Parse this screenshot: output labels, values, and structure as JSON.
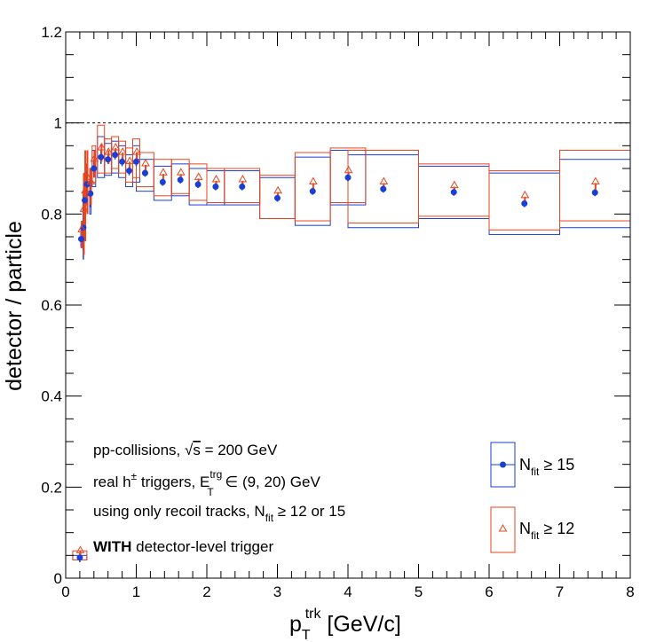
{
  "chart_data": {
    "type": "scatter",
    "xlabel": {
      "main": "p",
      "sub": "T",
      "sup": "trk",
      "unit": " [GeV/c]"
    },
    "ylabel": "detector / particle",
    "xlim": [
      0,
      8
    ],
    "ylim": [
      0,
      1.2
    ],
    "x_ticks": [
      "0",
      "1",
      "2",
      "3",
      "4",
      "5",
      "6",
      "7",
      "8"
    ],
    "y_ticks": [
      "0",
      "0.2",
      "0.4",
      "0.6",
      "0.8",
      "1",
      "1.2"
    ],
    "reference_line": {
      "y": 1.0,
      "style": "dashed"
    },
    "colors": {
      "nfit15": "#1a3fd6",
      "nfit12": "#e8461e"
    },
    "annotations": {
      "line1": {
        "pre": "pp-collisions, ",
        "sqrt": "s",
        "post": " = 200 GeV"
      },
      "line2": {
        "pre": "real h",
        "pm": "±",
        "mid": " triggers, E",
        "sup": "trg",
        "sub": "T",
        "post": " ∈ (9, 20) GeV"
      },
      "line3": {
        "pre": "using only recoil tracks, N",
        "sub": "fit",
        "post": " ≥ 12 or 15"
      },
      "line4": {
        "bold": "WITH",
        "post": " detector-level trigger"
      }
    },
    "legend": {
      "placement": "bottom-right",
      "entries": [
        {
          "id": "nfit15",
          "pre": "N",
          "sub": "fit",
          "post": " ≥ 15",
          "marker": "filled-circle"
        },
        {
          "id": "nfit12",
          "pre": "N",
          "sub": "fit",
          "post": " ≥ 12",
          "marker": "open-triangle"
        }
      ]
    },
    "series": [
      {
        "id": "nfit15",
        "points": [
          {
            "x": 0.2,
            "y": 0.045,
            "ey": 0.01,
            "sys": [
              0.04,
              0.05
            ],
            "xw": 0.2
          },
          {
            "x": 0.22,
            "y": 0.745,
            "ey": 0.02,
            "sys": [
              0.73,
              0.76
            ],
            "xw": 0.01
          },
          {
            "x": 0.25,
            "y": 0.77,
            "ey": 0.07,
            "sys": [
              0.72,
              0.82
            ],
            "xw": 0.01
          },
          {
            "x": 0.27,
            "y": 0.83,
            "ey": 0.06,
            "sys": [
              0.79,
              0.87
            ],
            "xw": 0.01
          },
          {
            "x": 0.3,
            "y": 0.865,
            "ey": 0.03,
            "sys": [
              0.82,
              0.9
            ],
            "xw": 0.02
          },
          {
            "x": 0.35,
            "y": 0.845,
            "ey": 0.03,
            "sys": [
              0.8,
              0.88
            ],
            "xw": 0.02
          },
          {
            "x": 0.4,
            "y": 0.9,
            "ey": 0.02,
            "sys": [
              0.86,
              0.94
            ],
            "xw": 0.05
          },
          {
            "x": 0.5,
            "y": 0.925,
            "ey": 0.015,
            "sys": [
              0.88,
              0.97
            ],
            "xw": 0.1
          },
          {
            "x": 0.6,
            "y": 0.92,
            "ey": 0.01,
            "sys": [
              0.885,
              0.955
            ],
            "xw": 0.1
          },
          {
            "x": 0.7,
            "y": 0.93,
            "ey": 0.01,
            "sys": [
              0.89,
              0.96
            ],
            "xw": 0.1
          },
          {
            "x": 0.8,
            "y": 0.915,
            "ey": 0.01,
            "sys": [
              0.88,
              0.95
            ],
            "xw": 0.1
          },
          {
            "x": 0.9,
            "y": 0.895,
            "ey": 0.01,
            "sys": [
              0.86,
              0.93
            ],
            "xw": 0.1
          },
          {
            "x": 1.0,
            "y": 0.915,
            "ey": 0.01,
            "sys": [
              0.87,
              0.95
            ],
            "xw": 0.1
          },
          {
            "x": 1.125,
            "y": 0.89,
            "ey": 0.008,
            "sys": [
              0.85,
              0.92
            ],
            "xw": 0.25
          },
          {
            "x": 1.375,
            "y": 0.87,
            "ey": 0.008,
            "sys": [
              0.83,
              0.905
            ],
            "xw": 0.25
          },
          {
            "x": 1.625,
            "y": 0.875,
            "ey": 0.008,
            "sys": [
              0.84,
              0.91
            ],
            "xw": 0.25
          },
          {
            "x": 1.875,
            "y": 0.865,
            "ey": 0.008,
            "sys": [
              0.82,
              0.9
            ],
            "xw": 0.25
          },
          {
            "x": 2.125,
            "y": 0.86,
            "ey": 0.008,
            "sys": [
              0.82,
              0.895
            ],
            "xw": 0.25
          },
          {
            "x": 2.5,
            "y": 0.86,
            "ey": 0.008,
            "sys": [
              0.82,
              0.895
            ],
            "xw": 0.5
          },
          {
            "x": 3.0,
            "y": 0.835,
            "ey": 0.008,
            "sys": [
              0.79,
              0.88
            ],
            "xw": 0.5
          },
          {
            "x": 3.5,
            "y": 0.85,
            "ey": 0.008,
            "sys": [
              0.775,
              0.925
            ],
            "xw": 0.5
          },
          {
            "x": 4.0,
            "y": 0.88,
            "ey": 0.008,
            "sys": [
              0.82,
              0.94
            ],
            "xw": 0.5
          },
          {
            "x": 4.5,
            "y": 0.855,
            "ey": 0.008,
            "sys": [
              0.77,
              0.93
            ],
            "xw": 1.0
          },
          {
            "x": 5.5,
            "y": 0.848,
            "ey": 0.008,
            "sys": [
              0.79,
              0.905
            ],
            "xw": 1.0
          },
          {
            "x": 6.5,
            "y": 0.823,
            "ey": 0.008,
            "sys": [
              0.755,
              0.89
            ],
            "xw": 1.0
          },
          {
            "x": 7.5,
            "y": 0.847,
            "ey": 0.008,
            "sys": [
              0.77,
              0.92
            ],
            "xw": 1.0
          }
        ]
      },
      {
        "id": "nfit12",
        "points": [
          {
            "x": 0.2,
            "y": 0.05,
            "ey": 0.01,
            "sys": [
              0.04,
              0.06
            ],
            "xw": 0.2
          },
          {
            "x": 0.22,
            "y": 0.755,
            "ey": 0.03,
            "sys": [
              0.74,
              0.77
            ],
            "xw": 0.01
          },
          {
            "x": 0.25,
            "y": 0.8,
            "ey": 0.09,
            "sys": [
              0.74,
              0.85
            ],
            "xw": 0.01
          },
          {
            "x": 0.27,
            "y": 0.84,
            "ey": 0.1,
            "sys": [
              0.8,
              0.89
            ],
            "xw": 0.01
          },
          {
            "x": 0.3,
            "y": 0.87,
            "ey": 0.07,
            "sys": [
              0.82,
              0.91
            ],
            "xw": 0.02
          },
          {
            "x": 0.35,
            "y": 0.86,
            "ey": 0.04,
            "sys": [
              0.82,
              0.9
            ],
            "xw": 0.02
          },
          {
            "x": 0.4,
            "y": 0.91,
            "ey": 0.03,
            "sys": [
              0.87,
              0.95
            ],
            "xw": 0.05
          },
          {
            "x": 0.5,
            "y": 0.935,
            "ey": 0.02,
            "sys": [
              0.89,
              0.995
            ],
            "xw": 0.1
          },
          {
            "x": 0.6,
            "y": 0.925,
            "ey": 0.015,
            "sys": [
              0.89,
              0.965
            ],
            "xw": 0.1
          },
          {
            "x": 0.7,
            "y": 0.935,
            "ey": 0.01,
            "sys": [
              0.9,
              0.97
            ],
            "xw": 0.1
          },
          {
            "x": 0.8,
            "y": 0.925,
            "ey": 0.01,
            "sys": [
              0.89,
              0.96
            ],
            "xw": 0.1
          },
          {
            "x": 0.9,
            "y": 0.905,
            "ey": 0.01,
            "sys": [
              0.87,
              0.945
            ],
            "xw": 0.1
          },
          {
            "x": 1.0,
            "y": 0.925,
            "ey": 0.01,
            "sys": [
              0.88,
              0.965
            ],
            "xw": 0.1
          },
          {
            "x": 1.125,
            "y": 0.9,
            "ey": 0.008,
            "sys": [
              0.86,
              0.935
            ],
            "xw": 0.25
          },
          {
            "x": 1.375,
            "y": 0.88,
            "ey": 0.008,
            "sys": [
              0.84,
              0.92
            ],
            "xw": 0.25
          },
          {
            "x": 1.625,
            "y": 0.88,
            "ey": 0.008,
            "sys": [
              0.845,
              0.92
            ],
            "xw": 0.25
          },
          {
            "x": 1.875,
            "y": 0.87,
            "ey": 0.008,
            "sys": [
              0.83,
              0.91
            ],
            "xw": 0.25
          },
          {
            "x": 2.125,
            "y": 0.865,
            "ey": 0.008,
            "sys": [
              0.825,
              0.9
            ],
            "xw": 0.25
          },
          {
            "x": 2.5,
            "y": 0.865,
            "ey": 0.008,
            "sys": [
              0.825,
              0.9
            ],
            "xw": 0.5
          },
          {
            "x": 3.0,
            "y": 0.84,
            "ey": 0.008,
            "sys": [
              0.79,
              0.885
            ],
            "xw": 0.5
          },
          {
            "x": 3.5,
            "y": 0.86,
            "ey": 0.008,
            "sys": [
              0.785,
              0.935
            ],
            "xw": 0.5
          },
          {
            "x": 4.0,
            "y": 0.885,
            "ey": 0.008,
            "sys": [
              0.825,
              0.945
            ],
            "xw": 0.5
          },
          {
            "x": 4.5,
            "y": 0.86,
            "ey": 0.008,
            "sys": [
              0.78,
              0.94
            ],
            "xw": 1.0
          },
          {
            "x": 5.5,
            "y": 0.852,
            "ey": 0.008,
            "sys": [
              0.795,
              0.91
            ],
            "xw": 1.0
          },
          {
            "x": 6.5,
            "y": 0.83,
            "ey": 0.008,
            "sys": [
              0.765,
              0.895
            ],
            "xw": 1.0
          },
          {
            "x": 7.5,
            "y": 0.86,
            "ey": 0.008,
            "sys": [
              0.785,
              0.94
            ],
            "xw": 1.0
          }
        ]
      }
    ]
  }
}
